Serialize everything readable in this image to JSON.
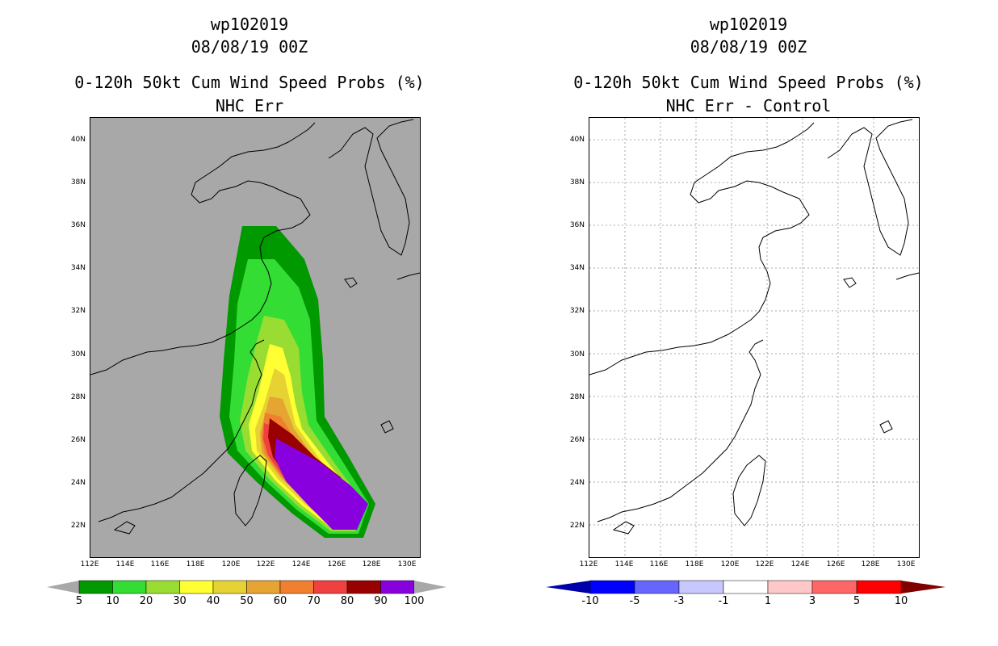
{
  "left": {
    "title_lines": [
      "wp102019",
      "08/08/19 00Z",
      "0-120h 50kt Cum Wind Speed Probs (%)",
      "NHC Err"
    ],
    "bg_color": "#a8a8a8",
    "colorbar": {
      "colors": [
        "#009900",
        "#33dd33",
        "#99dd33",
        "#ffff33",
        "#e6d233",
        "#e6a533",
        "#f08030",
        "#f04040",
        "#990000",
        "#8800dd"
      ],
      "labels": [
        "5",
        "10",
        "20",
        "30",
        "40",
        "50",
        "60",
        "70",
        "80",
        "90",
        "100"
      ],
      "end_left": "#a8a8a8",
      "end_right": "#a8a8a8"
    }
  },
  "right": {
    "title_lines": [
      "wp102019",
      "08/08/19 00Z",
      "0-120h 50kt Cum Wind Speed Probs (%)",
      "NHC Err - Control"
    ],
    "bg_color": "#ffffff",
    "colorbar": {
      "colors": [
        "#0000ff",
        "#6666ff",
        "#c8c8ff",
        "#ffffff",
        "#ffc8c8",
        "#ff6666",
        "#ff0000"
      ],
      "labels": [
        "-10",
        "-5",
        "-3",
        "-1",
        "1",
        "3",
        "5",
        "10"
      ],
      "end_left": "#0000aa",
      "end_right": "#800000"
    }
  },
  "axes": {
    "lat_labels": [
      "22N",
      "24N",
      "26N",
      "28N",
      "30N",
      "32N",
      "34N",
      "36N",
      "38N",
      "40N"
    ],
    "lon_labels": [
      "112E",
      "114E",
      "116E",
      "118E",
      "120E",
      "122E",
      "124E",
      "126E",
      "128E",
      "130E"
    ]
  }
}
